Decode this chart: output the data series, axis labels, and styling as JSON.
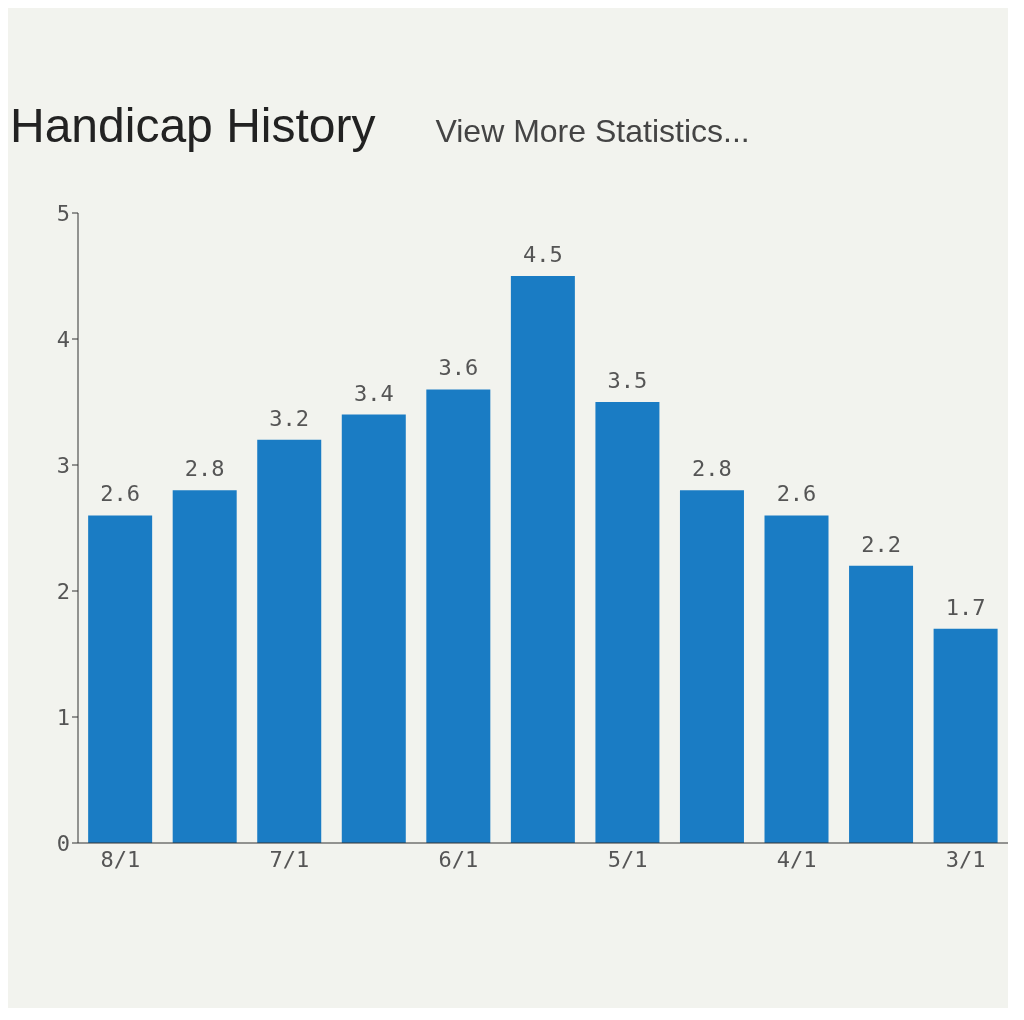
{
  "chart_data": {
    "type": "bar",
    "title": "Handicap History",
    "subtitle": "View More Statistics...",
    "categories": [
      "8/1",
      null,
      "7/1",
      null,
      "6/1",
      null,
      "5/1",
      null,
      "4/1",
      null,
      "3/1"
    ],
    "values": [
      2.6,
      2.8,
      3.2,
      3.4,
      3.6,
      4.5,
      3.5,
      2.8,
      2.6,
      2.2,
      1.7
    ],
    "color": "#1a7cc4",
    "ylim": [
      0,
      5
    ],
    "yticks": [
      0,
      1,
      2,
      3,
      4,
      5
    ],
    "grid": false,
    "data_labels": true
  }
}
